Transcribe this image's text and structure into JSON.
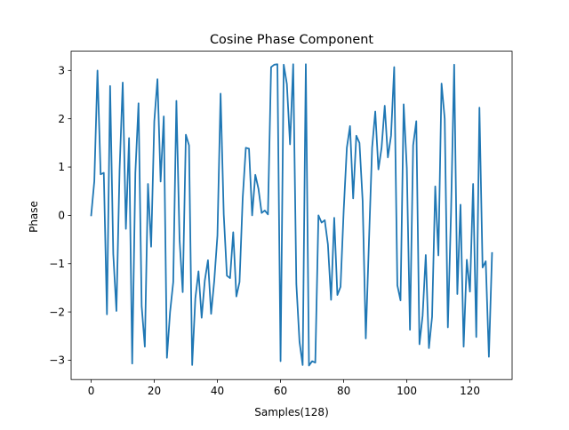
{
  "chart_data": {
    "type": "line",
    "title": "Cosine Phase Component",
    "xlabel": "Samples(128)",
    "ylabel": "Phase",
    "xlim": [
      -6.35,
      133.35
    ],
    "ylim": [
      -3.4,
      3.4
    ],
    "xticks": [
      0,
      20,
      40,
      60,
      80,
      100,
      120
    ],
    "yticks": [
      -3,
      -2,
      -1,
      0,
      1,
      2,
      3
    ],
    "grid": false,
    "line_color": "#1f77b4",
    "series": [
      {
        "values": [
          0,
          0.71,
          3.0,
          0.85,
          0.88,
          -2.05,
          2.68,
          -0.8,
          -1.98,
          0.94,
          2.75,
          -0.28,
          1.6,
          -3.07,
          0.88,
          2.32,
          -1.88,
          -2.72,
          0.65,
          -0.65,
          1.95,
          2.82,
          0.7,
          2.05,
          -2.95,
          -2.0,
          -1.38,
          2.37,
          -0.5,
          -1.59,
          1.67,
          1.45,
          -3.1,
          -1.72,
          -1.16,
          -2.12,
          -1.35,
          -0.93,
          -2.04,
          -1.35,
          -0.42,
          2.52,
          0.02,
          -1.25,
          -1.3,
          -0.35,
          -1.68,
          -1.38,
          0.35,
          1.4,
          1.38,
          0,
          0.84,
          0.55,
          0.05,
          0.1,
          0.02,
          3.07,
          3.12,
          3.13,
          -3.02,
          3.12,
          2.72,
          1.47,
          3.13,
          -1.42,
          -2.62,
          -3.1,
          3.13,
          -3.11,
          -3.02,
          -3.05,
          0,
          -0.15,
          -0.1,
          -0.6,
          -1.75,
          -0.05,
          -1.65,
          -1.48,
          0.1,
          1.4,
          1.85,
          0.35,
          1.65,
          1.5,
          0.3,
          -2.55,
          -0.55,
          1.4,
          2.15,
          0.95,
          1.4,
          2.27,
          1.2,
          1.65,
          3.07,
          -1.45,
          -1.76,
          2.3,
          0.98,
          -2.37,
          1.45,
          1.95,
          -2.67,
          -2.08,
          -0.82,
          -2.75,
          -2.1,
          0.6,
          -0.83,
          2.73,
          2.0,
          -2.32,
          0.05,
          3.12,
          -1.63,
          0.22,
          -2.72,
          -0.92,
          -1.58,
          0.65,
          -2.52,
          2.23,
          -1.08,
          -0.95,
          -2.93,
          -0.78
        ]
      }
    ]
  }
}
